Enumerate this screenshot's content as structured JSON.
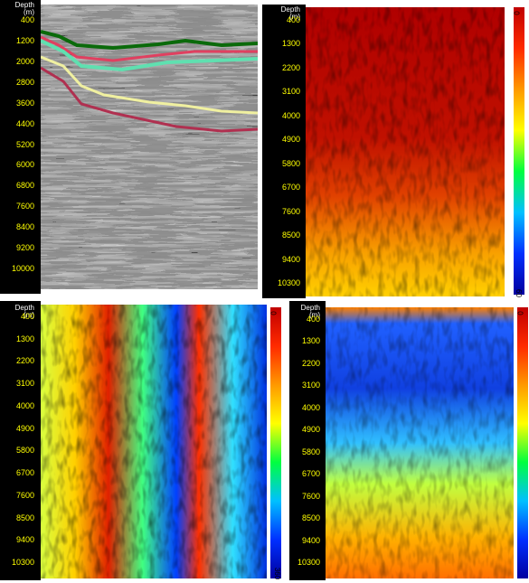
{
  "panels": [
    {
      "header": [
        "Depth",
        "(m)"
      ],
      "depth_labels": [
        400,
        1200,
        2000,
        2800,
        3600,
        4400,
        5200,
        6000,
        6800,
        7600,
        8400,
        9200,
        10000
      ]
    },
    {
      "header": [
        "Depth",
        "(m)"
      ],
      "depth_labels": [
        400,
        1300,
        2200,
        3100,
        4000,
        4900,
        5800,
        6700,
        7600,
        8500,
        9400,
        10300
      ],
      "colorbar_labels": [
        "0",
        "60"
      ]
    },
    {
      "header": [
        "Depth",
        "(m)"
      ],
      "depth_labels": [
        400,
        1300,
        2200,
        3100,
        4000,
        4900,
        5800,
        6700,
        7600,
        8500,
        9400,
        10300
      ],
      "colorbar_labels": [
        "0",
        "360"
      ]
    },
    {
      "header": [
        "Depth",
        "(m)"
      ],
      "depth_labels": [
        400,
        1300,
        2200,
        3100,
        4000,
        4900,
        5800,
        6700,
        7600,
        8500,
        9400,
        10300
      ],
      "colorbar_labels": [
        "0"
      ]
    }
  ]
}
